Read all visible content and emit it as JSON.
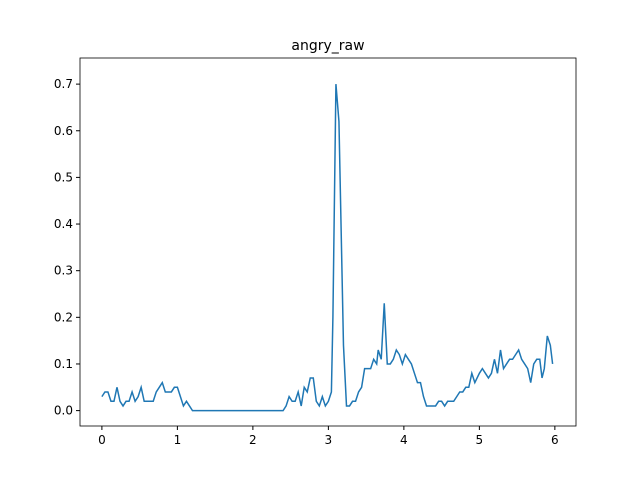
{
  "chart_data": {
    "type": "line",
    "title": "angry_raw",
    "x": [
      0,
      0.04,
      0.08,
      0.12,
      0.16,
      0.2,
      0.24,
      0.28,
      0.32,
      0.36,
      0.4,
      0.44,
      0.48,
      0.52,
      0.56,
      0.64,
      0.68,
      0.72,
      0.76,
      0.8,
      0.84,
      0.92,
      0.96,
      1.0,
      1.04,
      1.08,
      1.12,
      1.16,
      1.2,
      2.4,
      2.44,
      2.48,
      2.52,
      2.56,
      2.6,
      2.64,
      2.68,
      2.72,
      2.76,
      2.8,
      2.84,
      2.88,
      2.92,
      2.96,
      3.0,
      3.04,
      3.06,
      3.1,
      3.14,
      3.2,
      3.24,
      3.28,
      3.32,
      3.36,
      3.4,
      3.44,
      3.48,
      3.52,
      3.56,
      3.6,
      3.64,
      3.66,
      3.7,
      3.74,
      3.78,
      3.82,
      3.86,
      3.9,
      3.94,
      3.98,
      4.02,
      4.06,
      4.1,
      4.14,
      4.18,
      4.22,
      4.26,
      4.3,
      4.42,
      4.46,
      4.5,
      4.54,
      4.58,
      4.66,
      4.7,
      4.74,
      4.78,
      4.82,
      4.86,
      4.9,
      4.94,
      5.0,
      5.04,
      5.08,
      5.12,
      5.16,
      5.2,
      5.24,
      5.28,
      5.32,
      5.36,
      5.4,
      5.44,
      5.48,
      5.52,
      5.56,
      5.6,
      5.64,
      5.68,
      5.72,
      5.76,
      5.8,
      5.83,
      5.86,
      5.9,
      5.94,
      5.97
    ],
    "series": [
      {
        "color": "#1f77b4",
        "values": [
          0.03,
          0.04,
          0.04,
          0.02,
          0.02,
          0.05,
          0.02,
          0.01,
          0.02,
          0.02,
          0.04,
          0.02,
          0.03,
          0.05,
          0.02,
          0.02,
          0.02,
          0.04,
          0.05,
          0.06,
          0.04,
          0.04,
          0.05,
          0.05,
          0.03,
          0.01,
          0.02,
          0.01,
          0,
          0,
          0.01,
          0.03,
          0.02,
          0.02,
          0.04,
          0.01,
          0.05,
          0.04,
          0.07,
          0.07,
          0.02,
          0.01,
          0.03,
          0.01,
          0.02,
          0.04,
          0.2,
          0.7,
          0.62,
          0.14,
          0.01,
          0.01,
          0.02,
          0.02,
          0.04,
          0.05,
          0.09,
          0.09,
          0.09,
          0.11,
          0.1,
          0.13,
          0.11,
          0.23,
          0.1,
          0.1,
          0.11,
          0.13,
          0.12,
          0.1,
          0.12,
          0.11,
          0.1,
          0.08,
          0.06,
          0.06,
          0.03,
          0.01,
          0.01,
          0.02,
          0.02,
          0.01,
          0.02,
          0.02,
          0.03,
          0.04,
          0.04,
          0.05,
          0.05,
          0.08,
          0.06,
          0.08,
          0.09,
          0.08,
          0.07,
          0.08,
          0.11,
          0.08,
          0.13,
          0.09,
          0.1,
          0.11,
          0.11,
          0.12,
          0.13,
          0.11,
          0.1,
          0.09,
          0.06,
          0.1,
          0.11,
          0.11,
          0.07,
          0.09,
          0.16,
          0.14,
          0.1
        ]
      }
    ],
    "xlim": [
      -0.29,
      6.28
    ],
    "xticks": [
      0,
      1,
      2,
      3,
      4,
      5,
      6
    ],
    "ylim": [
      -0.033,
      0.756
    ],
    "yticks": [
      {
        "value": 0,
        "label": "0.0"
      },
      0.1,
      0.2,
      0.3,
      0.4,
      0.5,
      0.6,
      0.7
    ]
  }
}
